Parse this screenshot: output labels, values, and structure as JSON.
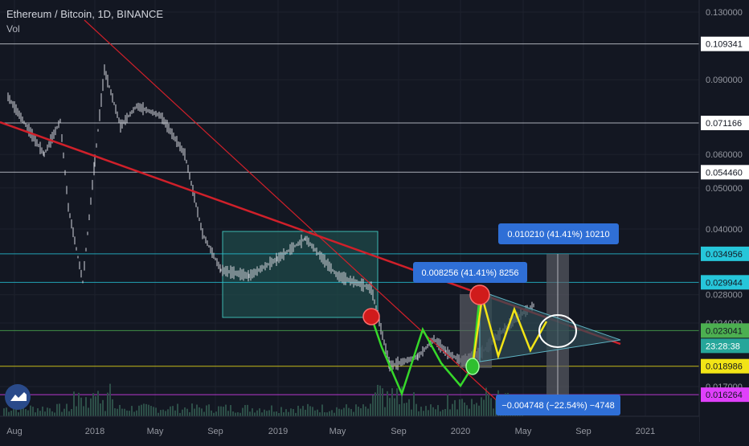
{
  "header": {
    "title": "Ethereum / Bitcoin, 1D, BINANCE",
    "vol": "Vol"
  },
  "colors": {
    "background": "#131722",
    "grid": "#1e222d",
    "candle_up": "#d1d4dc",
    "candle_down": "#d1d4dc",
    "trendline": "#d0202a",
    "box_fill": "#1f4a4a",
    "box_border": "#3cb8b0",
    "green_path": "#36d82a",
    "yellow_path": "#f2e416",
    "measure_fill": "#5d6068",
    "label_blue": "#2f6fd6",
    "price_tag_bg": "#ffffff"
  },
  "chart_data": {
    "type": "line",
    "title": "Ethereum / Bitcoin, 1D, BINANCE",
    "x_ticks": [
      "Aug",
      "2018",
      "May",
      "Sep",
      "2019",
      "May",
      "Sep",
      "2020",
      "May",
      "Sep",
      "2021"
    ],
    "y_scale": "log",
    "y_ticks": [
      0.13,
      0.09,
      0.06,
      0.05,
      0.04,
      0.028,
      0.024,
      0.017
    ],
    "y_tick_labels": [
      "0.130000",
      "0.090000",
      "0.060000",
      "0.050000",
      "0.040000",
      "0.028000",
      "0.024000",
      "0.017000"
    ],
    "horizontal_levels": [
      {
        "label": "0.109341",
        "value": 0.109341,
        "color": "#d1d4dc"
      },
      {
        "label": "0.071166",
        "value": 0.071166,
        "color": "#d1d4dc"
      },
      {
        "label": "0.054460",
        "value": 0.05446,
        "color": "#d1d4dc"
      },
      {
        "label": "0.034956",
        "value": 0.034956,
        "color": "#26c6da"
      },
      {
        "label": "0.029944",
        "value": 0.029944,
        "color": "#26c6da"
      },
      {
        "label": "0.023041",
        "value": 0.023041,
        "color": "#4caf50"
      },
      {
        "label": "0.018986",
        "value": 0.018986,
        "color": "#f2e416"
      },
      {
        "label": "0.016264",
        "value": 0.016264,
        "color": "#e040fb"
      }
    ],
    "current_price": {
      "value": "0.023041",
      "countdown": "23:28:38"
    },
    "annotations": [
      {
        "text": "0.010210 (41.41%) 10210"
      },
      {
        "text": "0.008256 (41.41%) 8256"
      },
      {
        "text": "−0.004748 (−22.54%) −4748"
      }
    ],
    "series": [
      {
        "values": [
          0.082,
          0.06,
          0.072,
          0.045,
          0.03,
          0.058,
          0.095,
          0.07,
          0.078,
          0.074,
          0.06,
          0.039,
          0.032,
          0.031,
          0.034,
          0.038,
          0.031,
          0.029,
          0.019,
          0.02,
          0.022,
          0.0205,
          0.0195,
          0.0205,
          0.0245,
          0.0265
        ]
      }
    ],
    "grid": true,
    "legend": "none"
  }
}
